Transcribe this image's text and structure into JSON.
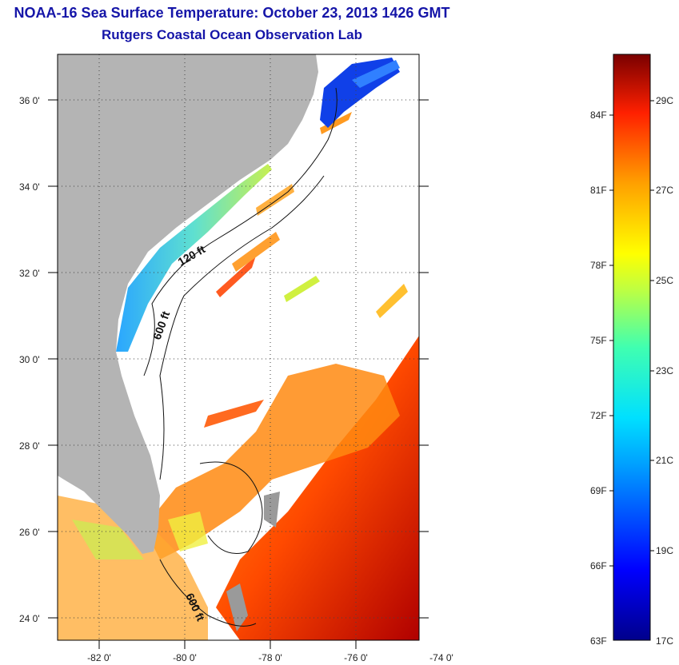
{
  "title": "NOAA-16 Sea Surface Temperature:  October 23, 2013 1426 GMT",
  "subtitle": "Rutgers Coastal Ocean Observation Lab",
  "map": {
    "lat_labels": [
      "36 0'",
      "34 0'",
      "32 0'",
      "30 0'",
      "28 0'",
      "26 0'",
      "24 0'"
    ],
    "lon_labels": [
      "-82 0'",
      "-80 0'",
      "-78 0'",
      "-76 0'",
      "-74 0'"
    ],
    "contour_labels": [
      "120 ft",
      "600 ft",
      "600 ft"
    ],
    "land_color": "#b4b4b4",
    "no_data_color": "#ffffff"
  },
  "colorbar": {
    "f_labels": [
      "84F",
      "81F",
      "78F",
      "75F",
      "72F",
      "69F",
      "66F",
      "63F"
    ],
    "c_labels": [
      "29C",
      "27C",
      "25C",
      "23C",
      "21C",
      "19C",
      "17C"
    ],
    "min_color": "#00008b",
    "max_color": "#8b0000"
  }
}
